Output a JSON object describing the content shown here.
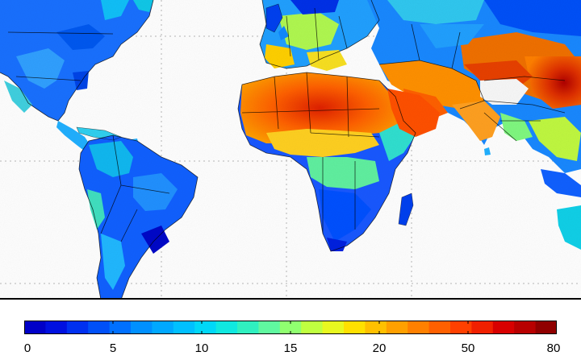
{
  "colorbar": {
    "ticks": [
      "0",
      "5",
      "10",
      "15",
      "20",
      "50",
      "80"
    ],
    "colors": [
      "#0000c8",
      "#0010e0",
      "#0030f0",
      "#0050f8",
      "#0070ff",
      "#0090ff",
      "#00a8ff",
      "#00c0ff",
      "#00d8f8",
      "#10e8e0",
      "#30f0c0",
      "#60f8a0",
      "#90ff70",
      "#c0ff40",
      "#e8f820",
      "#ffe000",
      "#ffc000",
      "#ffa000",
      "#ff8000",
      "#ff6000",
      "#ff4000",
      "#f02000",
      "#d80000",
      "#b80000",
      "#900000"
    ]
  }
}
